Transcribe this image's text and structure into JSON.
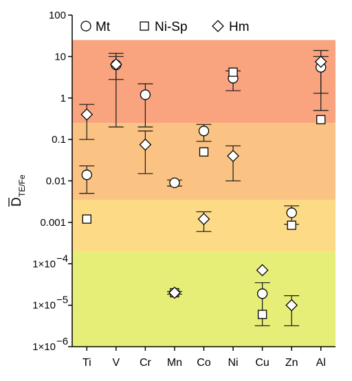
{
  "chart_data": {
    "type": "scatter",
    "title": "",
    "xlabel": "",
    "ylabel": {
      "main": "D",
      "subscript": "TE/Fe"
    },
    "y_scale": "log",
    "ylim": [
      1e-06,
      100
    ],
    "y_ticks": [
      {
        "value": 100,
        "label": "100"
      },
      {
        "value": 10,
        "label": "10"
      },
      {
        "value": 1,
        "label": "1"
      },
      {
        "value": 0.1,
        "label": "0.1"
      },
      {
        "value": 0.01,
        "label": "0.01"
      },
      {
        "value": 0.001,
        "label": "0.001"
      },
      {
        "value": 0.0001,
        "label": "1×10",
        "exp": "−4"
      },
      {
        "value": 1e-05,
        "label": "1×10",
        "exp": "−5"
      },
      {
        "value": 1e-06,
        "label": "1×10",
        "exp": "−6"
      }
    ],
    "categories": [
      "Ti",
      "V",
      "Cr",
      "Mn",
      "Co",
      "Ni",
      "Cu",
      "Zn",
      "Al"
    ],
    "legend": {
      "position": "top",
      "entries": [
        {
          "name": "Mt",
          "marker": "circle"
        },
        {
          "name": "Ni-Sp",
          "marker": "square"
        },
        {
          "name": "Hm",
          "marker": "diamond"
        }
      ]
    },
    "bands": [
      {
        "from": 0.25,
        "to": 25,
        "color": "#f9a47f"
      },
      {
        "from": 0.0035,
        "to": 0.25,
        "color": "#fbc383"
      },
      {
        "from": 0.0002,
        "to": 0.0035,
        "color": "#fddb86"
      },
      {
        "from": 1e-06,
        "to": 0.0002,
        "color": "#e6ee78"
      }
    ],
    "series": [
      {
        "name": "Mt",
        "marker": "circle",
        "points": [
          {
            "x": "Ti",
            "y": 0.014,
            "lo": 0.005,
            "hi": 0.023
          },
          {
            "x": "V",
            "y": 6.3,
            "lo": 2.8,
            "hi": 10
          },
          {
            "x": "Cr",
            "y": 1.2,
            "lo": 0.2,
            "hi": 2.2
          },
          {
            "x": "Mn",
            "y": 0.009,
            "lo": 0.0075,
            "hi": 0.0105
          },
          {
            "x": "Co",
            "y": 0.16,
            "lo": 0.09,
            "hi": 0.23
          },
          {
            "x": "Ni",
            "y": 3.0,
            "lo": 1.5,
            "hi": 4.5
          },
          {
            "x": "Cu",
            "y": 1.9e-05,
            "lo": 3.2e-06,
            "hi": 3.5e-05
          },
          {
            "x": "Zn",
            "y": 0.0017,
            "lo": 0.0009,
            "hi": 0.0025
          },
          {
            "x": "Al",
            "y": 5.5,
            "lo": 1.3,
            "hi": 10
          }
        ]
      },
      {
        "name": "Ni-Sp",
        "marker": "square",
        "points": [
          {
            "x": "Ti",
            "y": 0.0012
          },
          {
            "x": "Mn",
            "y": 2e-05
          },
          {
            "x": "Co",
            "y": 0.05
          },
          {
            "x": "Ni",
            "y": 4.2
          },
          {
            "x": "Cu",
            "y": 6e-06
          },
          {
            "x": "Zn",
            "y": 0.00085
          },
          {
            "x": "Al",
            "y": 0.3
          }
        ]
      },
      {
        "name": "Hm",
        "marker": "diamond",
        "points": [
          {
            "x": "Ti",
            "y": 0.4,
            "lo": 0.1,
            "hi": 0.7
          },
          {
            "x": "V",
            "y": 6.5,
            "lo": 0.2,
            "hi": 12
          },
          {
            "x": "Cr",
            "y": 0.075,
            "lo": 0.015,
            "hi": 0.16
          },
          {
            "x": "Mn",
            "y": 2e-05,
            "lo": 1.85e-05,
            "hi": 2.15e-05
          },
          {
            "x": "Co",
            "y": 0.0012,
            "lo": 0.0006,
            "hi": 0.0018
          },
          {
            "x": "Ni",
            "y": 0.04,
            "lo": 0.01,
            "hi": 0.07
          },
          {
            "x": "Cu",
            "y": 7e-05
          },
          {
            "x": "Zn",
            "y": 1e-05,
            "lo": 3.2e-06,
            "hi": 1.7e-05
          },
          {
            "x": "Al",
            "y": 7.5,
            "lo": 0.5,
            "hi": 14
          }
        ]
      }
    ]
  }
}
